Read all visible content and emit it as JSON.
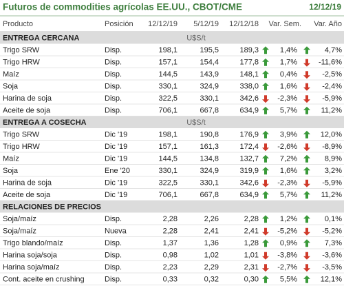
{
  "header": {
    "title": "Futuros de commodities agrícolas EE.UU., CBOT/CME",
    "date": "12/12/19"
  },
  "columns": [
    "Producto",
    "Posición",
    "12/12/19",
    "5/12/19",
    "12/12/18",
    "Var. Sem.",
    "Var. Año"
  ],
  "sections": [
    {
      "title": "ENTREGA CERCANA",
      "unit": "U$S/t",
      "rows": [
        [
          "Trigo SRW",
          "Disp.",
          "198,1",
          "195,5",
          "189,3",
          "1,4%",
          "4,7%"
        ],
        [
          "Trigo HRW",
          "Disp.",
          "157,1",
          "154,4",
          "177,8",
          "1,7%",
          "-11,6%"
        ],
        [
          "Maíz",
          "Disp.",
          "144,5",
          "143,9",
          "148,1",
          "0,4%",
          "-2,5%"
        ],
        [
          "Soja",
          "Disp.",
          "330,1",
          "324,9",
          "338,0",
          "1,6%",
          "-2,4%"
        ],
        [
          "Harina de soja",
          "Disp.",
          "322,5",
          "330,1",
          "342,6",
          "-2,3%",
          "-5,9%"
        ],
        [
          "Aceite de soja",
          "Disp.",
          "706,1",
          "667,8",
          "634,9",
          "5,7%",
          "11,2%"
        ]
      ]
    },
    {
      "title": "ENTREGA A COSECHA",
      "unit": "U$S/t",
      "rows": [
        [
          "Trigo SRW",
          "Dic '19",
          "198,1",
          "190,8",
          "176,9",
          "3,9%",
          "12,0%"
        ],
        [
          "Trigo HRW",
          "Dic '19",
          "157,1",
          "161,3",
          "172,4",
          "-2,6%",
          "-8,9%"
        ],
        [
          "Maíz",
          "Dic '19",
          "144,5",
          "134,8",
          "132,7",
          "7,2%",
          "8,9%"
        ],
        [
          "Soja",
          "Ene '20",
          "330,1",
          "324,9",
          "319,9",
          "1,6%",
          "3,2%"
        ],
        [
          "Harina de soja",
          "Dic '19",
          "322,5",
          "330,1",
          "342,6",
          "-2,3%",
          "-5,9%"
        ],
        [
          "Aceite de soja",
          "Dic '19",
          "706,1",
          "667,8",
          "634,9",
          "5,7%",
          "11,2%"
        ]
      ]
    },
    {
      "title": "RELACIONES DE PRECIOS",
      "rows": [
        [
          "Soja/maíz",
          "Disp.",
          "2,28",
          "2,26",
          "2,28",
          "1,2%",
          "0,1%"
        ],
        [
          "Soja/maíz",
          "Nueva",
          "2,28",
          "2,41",
          "2,41",
          "-5,2%",
          "-5,2%"
        ],
        [
          "Trigo blando/maíz",
          "Disp.",
          "1,37",
          "1,36",
          "1,28",
          "0,9%",
          "7,3%"
        ],
        [
          "Harina soja/soja",
          "Disp.",
          "0,98",
          "1,02",
          "1,01",
          "-3,8%",
          "-3,6%"
        ],
        [
          "Harina soja/maíz",
          "Disp.",
          "2,23",
          "2,29",
          "2,31",
          "-2,7%",
          "-3,5%"
        ],
        [
          "Cont. aceite en crushing",
          "Disp.",
          "0,33",
          "0,32",
          "0,30",
          "5,5%",
          "12,1%"
        ]
      ]
    }
  ]
}
